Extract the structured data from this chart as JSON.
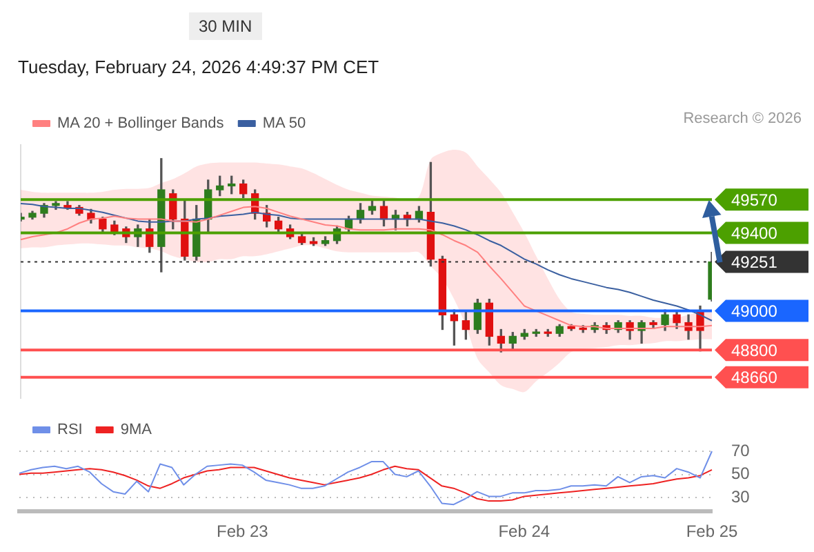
{
  "chart_data": [
    {
      "type": "candlestick",
      "subtitle": "30 MIN",
      "annotations": [
        "Tuesday, February 24, 2026 4:49:37 PM CET",
        "Research © 2026"
      ],
      "categories": [
        null,
        null,
        null,
        null,
        null,
        null,
        null,
        null,
        null,
        null,
        null,
        null,
        null,
        null,
        null,
        null,
        null,
        null,
        null,
        null,
        null,
        null,
        null,
        null,
        null,
        null,
        null,
        null,
        null,
        null,
        null,
        null,
        null,
        null,
        null,
        null,
        null,
        null,
        null,
        null,
        null,
        null,
        null,
        null,
        null,
        null,
        null,
        null,
        null,
        null,
        null,
        null,
        null,
        null,
        null,
        null,
        null,
        null,
        null,
        null
      ],
      "ohlc": [
        [
          49470,
          49500,
          49460,
          49480
        ],
        [
          49480,
          49510,
          49470,
          49500
        ],
        [
          49500,
          49550,
          49480,
          49540
        ],
        [
          49540,
          49560,
          49520,
          49550
        ],
        [
          49540,
          49560,
          49520,
          49530
        ],
        [
          49530,
          49540,
          49490,
          49500
        ],
        [
          49500,
          49520,
          49450,
          49470
        ],
        [
          49470,
          49480,
          49400,
          49420
        ],
        [
          49440,
          49460,
          49390,
          49400
        ],
        [
          49420,
          49430,
          49350,
          49380
        ],
        [
          49380,
          49440,
          49330,
          49420
        ],
        [
          49420,
          49470,
          49300,
          49330
        ],
        [
          49330,
          49780,
          49200,
          49620
        ],
        [
          49600,
          49620,
          49420,
          49470
        ],
        [
          49470,
          49570,
          49260,
          49280
        ],
        [
          49280,
          49540,
          49260,
          49470
        ],
        [
          49470,
          49670,
          49400,
          49620
        ],
        [
          49620,
          49690,
          49590,
          49640
        ],
        [
          49640,
          49690,
          49600,
          49650
        ],
        [
          49650,
          49670,
          49580,
          49600
        ],
        [
          49600,
          49620,
          49470,
          49500
        ],
        [
          49500,
          49540,
          49430,
          49460
        ],
        [
          49460,
          49480,
          49400,
          49420
        ],
        [
          49420,
          49440,
          49370,
          49380
        ],
        [
          49380,
          49400,
          49340,
          49350
        ],
        [
          49355,
          49375,
          49335,
          49345
        ],
        [
          49345,
          49380,
          49335,
          49360
        ],
        [
          49360,
          49435,
          49345,
          49420
        ],
        [
          49420,
          49485,
          49400,
          49470
        ],
        [
          49470,
          49550,
          49450,
          49515
        ],
        [
          49515,
          49565,
          49495,
          49535
        ],
        [
          49535,
          49565,
          49435,
          49470
        ],
        [
          49470,
          49515,
          49415,
          49490
        ],
        [
          49490,
          49505,
          49435,
          49470
        ],
        [
          49470,
          49535,
          49455,
          49510
        ],
        [
          49505,
          49760,
          49230,
          49265
        ],
        [
          49265,
          49280,
          48905,
          48980
        ],
        [
          48980,
          49005,
          48825,
          48950
        ],
        [
          48950,
          48995,
          48855,
          48905
        ],
        [
          48905,
          49060,
          48885,
          49040
        ],
        [
          49040,
          49060,
          48825,
          48870
        ],
        [
          48870,
          48905,
          48790,
          48835
        ],
        [
          48835,
          48890,
          48805,
          48870
        ],
        [
          48870,
          48905,
          48855,
          48885
        ],
        [
          48885,
          48905,
          48870,
          48890
        ],
        [
          48890,
          48905,
          48870,
          48885
        ],
        [
          48885,
          48930,
          48870,
          48920
        ],
        [
          48920,
          48930,
          48900,
          48910
        ],
        [
          48910,
          48925,
          48890,
          48905
        ],
        [
          48905,
          48940,
          48890,
          48925
        ],
        [
          48925,
          48940,
          48885,
          48905
        ],
        [
          48905,
          48950,
          48890,
          48940
        ],
        [
          48940,
          48950,
          48855,
          48900
        ],
        [
          48900,
          48950,
          48835,
          48940
        ],
        [
          48940,
          48950,
          48910,
          48930
        ],
        [
          48930,
          49005,
          48900,
          48980
        ],
        [
          48980,
          48995,
          48910,
          48940
        ],
        [
          48940,
          48980,
          48855,
          48900
        ],
        [
          48995,
          49025,
          48795,
          48900
        ],
        [
          49060,
          49300,
          49050,
          49251
        ]
      ],
      "colors": [
        "#2e7d1e",
        "#2e7d1e",
        "#2e7d1e",
        "#2e7d1e",
        "#e01010",
        "#e01010",
        "#e01010",
        "#e01010",
        "#e01010",
        "#e01010",
        "#2e7d1e",
        "#e01010",
        "#2e7d1e",
        "#e01010",
        "#e01010",
        "#2e7d1e",
        "#2e7d1e",
        "#2e7d1e",
        "#2e7d1e",
        "#e01010",
        "#e01010",
        "#e01010",
        "#e01010",
        "#e01010",
        "#e01010",
        "#e01010",
        "#2e7d1e",
        "#2e7d1e",
        "#2e7d1e",
        "#2e7d1e",
        "#2e7d1e",
        "#e01010",
        "#2e7d1e",
        "#e01010",
        "#2e7d1e",
        "#e01010",
        "#e01010",
        "#e01010",
        "#e01010",
        "#2e7d1e",
        "#e01010",
        "#e01010",
        "#2e7d1e",
        "#2e7d1e",
        "#2e7d1e",
        "#e01010",
        "#2e7d1e",
        "#e01010",
        "#e01010",
        "#2e7d1e",
        "#e01010",
        "#2e7d1e",
        "#e01010",
        "#2e7d1e",
        "#e01010",
        "#2e7d1e",
        "#e01010",
        "#e01010",
        "#e01010",
        "#2e7d1e"
      ],
      "series": [
        {
          "type": "line",
          "name": "MA 20 + Bollinger Bands",
          "color": "#ff8080",
          "values": [
            49365,
            49380,
            49390,
            49400,
            49420,
            49450,
            49470,
            49475,
            49485,
            49475,
            49470,
            49470,
            49470,
            49460,
            49460,
            49455,
            49470,
            49490,
            49510,
            49530,
            49535,
            49525,
            49505,
            49485,
            49470,
            49455,
            49440,
            49435,
            49420,
            49415,
            49415,
            49415,
            49420,
            49420,
            49420,
            49415,
            49390,
            49360,
            49335,
            49300,
            49230,
            49165,
            49095,
            49025,
            49000,
            48975,
            48950,
            48925,
            48920,
            48920,
            48910,
            48910,
            48910,
            48910,
            48910,
            48920,
            48920,
            48920,
            48920,
            48925
          ],
          "lower": [
            49320,
            49325,
            49325,
            49335,
            49340,
            49345,
            49345,
            49340,
            49335,
            49335,
            49325,
            49320,
            49305,
            49280,
            49265,
            49250,
            49250,
            49265,
            49265,
            49280,
            49280,
            49290,
            49305,
            49320,
            49335,
            49335,
            49320,
            49305,
            49300,
            49300,
            49300,
            49300,
            49300,
            49300,
            49300,
            49230,
            49165,
            49060,
            48925,
            48755,
            48685,
            48620,
            48600,
            48585,
            48640,
            48685,
            48735,
            48790,
            48805,
            48810,
            48815,
            48825,
            48825,
            48830,
            48835,
            48845,
            48845,
            48850,
            48855,
            48855
          ],
          "upper": [
            49620,
            49610,
            49605,
            49605,
            49605,
            49605,
            49605,
            49610,
            49620,
            49625,
            49625,
            49630,
            49655,
            49675,
            49705,
            49740,
            49755,
            49760,
            49760,
            49760,
            49760,
            49755,
            49750,
            49740,
            49730,
            49705,
            49675,
            49645,
            49620,
            49605,
            49590,
            49585,
            49580,
            49570,
            49585,
            49775,
            49810,
            49825,
            49810,
            49740,
            49675,
            49605,
            49505,
            49400,
            49280,
            49165,
            49060,
            48995,
            48985,
            48980,
            48980,
            48980,
            48975,
            48975,
            48965,
            48965,
            48965,
            48980,
            48995,
            49005
          ]
        },
        {
          "type": "line",
          "name": "MA 50",
          "color": "#3a5fa0",
          "values": [
            49550,
            49545,
            49535,
            49530,
            49525,
            49525,
            49515,
            49505,
            49490,
            49475,
            49460,
            49455,
            49455,
            49460,
            49460,
            49470,
            49475,
            49485,
            49490,
            49495,
            49505,
            49495,
            49490,
            49475,
            49470,
            49470,
            49470,
            49470,
            49470,
            49470,
            49470,
            49470,
            49470,
            49470,
            49470,
            49460,
            49450,
            49435,
            49415,
            49390,
            49360,
            49335,
            49300,
            49265,
            49240,
            49210,
            49185,
            49165,
            49150,
            49135,
            49120,
            49110,
            49095,
            49075,
            49055,
            49040,
            49025,
            49005,
            48980,
            48950
          ]
        }
      ],
      "ref_lines": [
        {
          "axis": "y",
          "value": 49570,
          "label": "49570",
          "color": "#4ca000",
          "line_style": "solid"
        },
        {
          "axis": "y",
          "value": 49400,
          "label": "49400",
          "color": "#4ca000",
          "line_style": "solid"
        },
        {
          "axis": "y",
          "value": 49251,
          "label": "49251",
          "color": "#333333",
          "line_style": "dotted"
        },
        {
          "axis": "y",
          "value": 49000,
          "label": "49000",
          "color": "#1a66ff",
          "line_style": "solid"
        },
        {
          "axis": "y",
          "value": 48800,
          "label": "48800",
          "color": "#ff5050",
          "line_style": "solid"
        },
        {
          "axis": "y",
          "value": 48660,
          "label": "48660",
          "color": "#ff5050",
          "line_style": "solid"
        }
      ],
      "ylim": [
        48550,
        49850
      ],
      "tick_labels": false,
      "legend": "top left"
    },
    {
      "type": "line",
      "categories": [
        null,
        null,
        null,
        null,
        null,
        null,
        null,
        null,
        null,
        null,
        null,
        null,
        null,
        null,
        null,
        null,
        null,
        null,
        null,
        "Feb 23",
        null,
        null,
        null,
        null,
        null,
        null,
        null,
        null,
        null,
        null,
        null,
        null,
        null,
        null,
        null,
        null,
        null,
        null,
        null,
        null,
        null,
        null,
        null,
        "Feb 24",
        null,
        null,
        null,
        null,
        null,
        null,
        null,
        null,
        null,
        null,
        null,
        null,
        null,
        null,
        null,
        "Feb 25"
      ],
      "series": [
        {
          "name": "RSI",
          "color": "#6f8fe8",
          "values": [
            51,
            54,
            56,
            57,
            55,
            57,
            52,
            42,
            35,
            33,
            44,
            35,
            59,
            56,
            41,
            50,
            57,
            58,
            59,
            58,
            52,
            45,
            43,
            41,
            38,
            38,
            40,
            46,
            52,
            56,
            61,
            61,
            50,
            48,
            53,
            40,
            25,
            24,
            29,
            35,
            31,
            31,
            34,
            34,
            36,
            36,
            37,
            40,
            40,
            41,
            40,
            48,
            43,
            48,
            49,
            47,
            55,
            52,
            47,
            70
          ]
        },
        {
          "name": "9MA",
          "color": "#ee2222",
          "values": [
            50,
            51,
            51,
            52,
            53,
            54,
            55,
            54,
            52,
            49,
            45,
            40,
            38,
            42,
            47,
            50,
            53,
            54,
            56,
            56,
            56,
            53,
            50,
            47,
            45,
            43,
            41,
            43,
            45,
            47,
            50,
            54,
            57,
            55,
            54,
            47,
            40,
            38,
            34,
            29,
            27,
            27,
            28,
            31,
            32,
            33,
            34,
            35,
            36,
            37,
            38,
            39,
            40,
            41,
            42,
            44,
            46,
            47,
            49,
            54
          ]
        }
      ],
      "ylim": [
        18,
        70
      ],
      "yticks": [
        30,
        50,
        70
      ],
      "grid": "y",
      "legend": "top left"
    }
  ]
}
